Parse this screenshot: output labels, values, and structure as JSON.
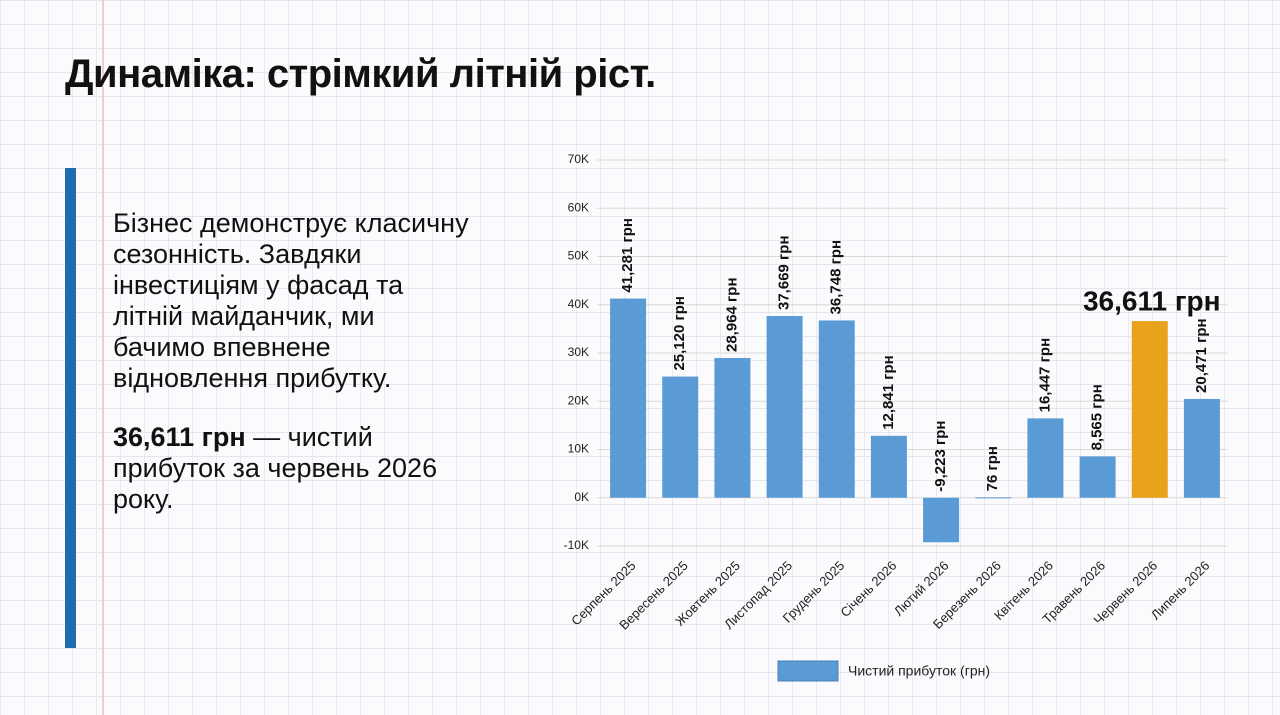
{
  "title": "Динаміка: стрімкий літній ріст.",
  "text": {
    "paragraph": "Бізнес демонструє класичну сезонність. Завдяки інвестиціям у фасад та літній майданчик, ми бачимо впевнене відновлення прибутку.",
    "highlight": "36,611 грн",
    "highlight_rest": "— чистий прибуток за червень 2026 року."
  },
  "chart_data": {
    "type": "bar",
    "categories": [
      "Серпень 2025",
      "Вересень 2025",
      "Жовтень 2025",
      "Листопад 2025",
      "Грудень 2025",
      "Січень 2026",
      "Лютий 2026",
      "Березень 2026",
      "Квітень 2026",
      "Травень 2026",
      "Червень 2026",
      "Липень 2026"
    ],
    "series": [
      {
        "name": "Чистий прибуток (грн)",
        "color": "#5b9bd5",
        "colors": [
          "#5b9bd5",
          "#5b9bd5",
          "#5b9bd5",
          "#5b9bd5",
          "#5b9bd5",
          "#5b9bd5",
          "#5b9bd5",
          "#5b9bd5",
          "#5b9bd5",
          "#5b9bd5",
          "#e8a21b",
          "#5b9bd5"
        ],
        "values": [
          41281,
          25120,
          28964,
          37669,
          36748,
          12841,
          -9223,
          76,
          16447,
          8565,
          36611,
          20471
        ],
        "value_labels": [
          "41,281 грн",
          "25,120 грн",
          "28,964 грн",
          "37,669 грн",
          "36,748 грн",
          "12,841 грн",
          "-9,223 грн",
          "76 грн",
          "16,447 грн",
          "8,565 грн",
          "36,611 грн",
          "20,471 грн"
        ]
      }
    ],
    "ylim": [
      -10000,
      70000
    ],
    "yticks": [
      {
        "value": -10000,
        "label": "-10K"
      },
      {
        "value": 0,
        "label": "0K"
      },
      {
        "value": 10000,
        "label": "10K"
      },
      {
        "value": 20000,
        "label": "20K"
      },
      {
        "value": 30000,
        "label": "30K"
      },
      {
        "value": 40000,
        "label": "40K"
      },
      {
        "value": 50000,
        "label": "50K"
      },
      {
        "value": 60000,
        "label": "60K"
      },
      {
        "value": 70000,
        "label": "70K"
      }
    ],
    "grid": true,
    "legend": "bottom"
  }
}
